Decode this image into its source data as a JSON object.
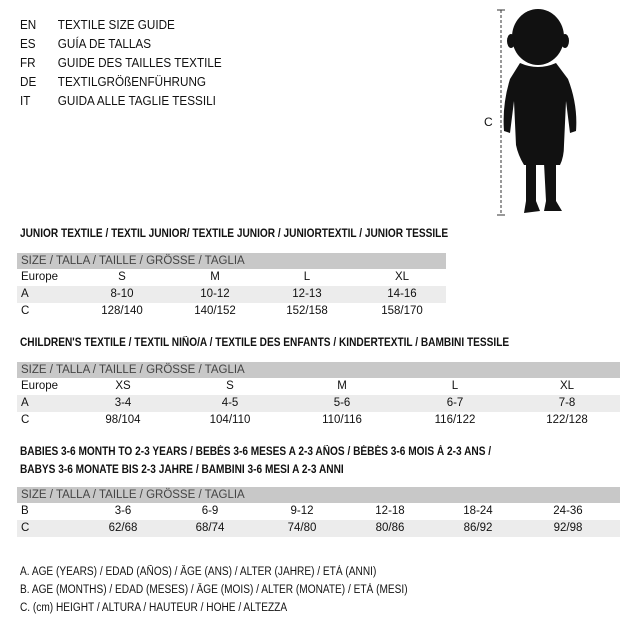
{
  "languages": [
    {
      "code": "EN",
      "text": "TEXTILE SIZE GUIDE"
    },
    {
      "code": "ES",
      "text": "GUÍA DE TALLAS"
    },
    {
      "code": "FR",
      "text": "GUIDE DES TAILLES TEXTILE"
    },
    {
      "code": "DE",
      "text": "TEXTILGRÖßENFÜHRUNG"
    },
    {
      "code": "IT",
      "text": "GUIDA ALLE TAGLIE TESSILI"
    }
  ],
  "figure": {
    "icon": "child-silhouette",
    "measure_label": "C"
  },
  "junior": {
    "title": "JUNIOR TEXTILE / TEXTIL JUNIOR/ TEXTILE JUNIOR / JUNIORTEXTIL / JUNIOR TESSILE",
    "header": "SIZE / TALLA / TAILLE / GRÖSSE / TAGLIA",
    "rows": [
      {
        "label": "Europe",
        "values": [
          "S",
          "M",
          "L",
          "XL"
        ]
      },
      {
        "label": "A",
        "values": [
          "8-10",
          "10-12",
          "12-13",
          "14-16"
        ]
      },
      {
        "label": "C",
        "values": [
          "128/140",
          "140/152",
          "152/158",
          "158/170"
        ]
      }
    ]
  },
  "children": {
    "title": "CHILDREN'S TEXTILE / TEXTIL NIÑO/A / TEXTILE DES ENFANTS / KINDERTEXTIL / BAMBINI TESSILE",
    "header": "SIZE / TALLA / TAILLE / GRÖSSE / TAGLIA",
    "rows": [
      {
        "label": "Europe",
        "values": [
          "XS",
          "S",
          "M",
          "L",
          "XL"
        ]
      },
      {
        "label": "A",
        "values": [
          "3-4",
          "4-5",
          "5-6",
          "6-7",
          "7-8"
        ]
      },
      {
        "label": "C",
        "values": [
          "98/104",
          "104/110",
          "110/116",
          "116/122",
          "122/128"
        ]
      }
    ]
  },
  "babies": {
    "title_line1": "BABIES 3-6 MONTH TO 2-3 YEARS / BEBÉS 3-6 MESES A 2-3 AÑOS / BÉBÉS 3-6 MOIS À 2-3 ANS /",
    "title_line2": "BABYS 3-6 MONATE BIS 2-3 JAHRE / BAMBINI 3-6 MESI A 2-3 ANNI",
    "header": "SIZE / TALLA / TAILLE / GRÖSSE / TAGLIA",
    "rows": [
      {
        "label": "B",
        "values": [
          "3-6",
          "6-9",
          "9-12",
          "12-18",
          "18-24",
          "24-36"
        ]
      },
      {
        "label": "C",
        "values": [
          "62/68",
          "68/74",
          "74/80",
          "80/86",
          "86/92",
          "92/98"
        ]
      }
    ]
  },
  "legend": [
    "A. AGE (YEARS) / EDAD (AÑOS) / ÂGE (ANS) / ALTER (JAHRE) / ETÀ (ANNI)",
    "B. AGE (MONTHS) / EDAD (MESES) / ÂGE (MOIS) / ALTER (MONATE) / ETÀ (MESI)",
    "C. (cm) HEIGHT / ALTURA / HAUTEUR / HÖHE / ALTEZZA"
  ]
}
